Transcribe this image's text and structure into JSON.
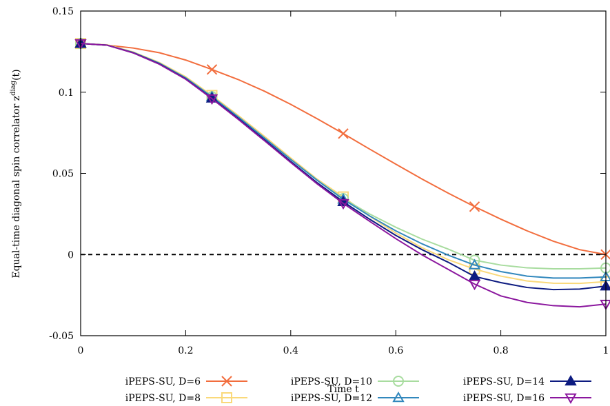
{
  "chart_data": {
    "type": "line",
    "xlabel": "Time t",
    "ylabel": "Equal-time diagonal spin correlator z",
    "ylabel_sup": "diag",
    "ylabel_suffix": "(t)",
    "xlim": [
      0,
      1
    ],
    "ylim": [
      -0.05,
      0.15
    ],
    "xticks": [
      0,
      0.2,
      0.4,
      0.6,
      0.8,
      1
    ],
    "xtick_labels": [
      "0",
      "0.2",
      "0.4",
      "0.6",
      "0.8",
      "1"
    ],
    "yticks": [
      -0.05,
      0,
      0.05,
      0.1,
      0.15
    ],
    "ytick_labels": [
      "-0.05",
      "0",
      "0.05",
      "0.1",
      "0.15"
    ],
    "reference_line": {
      "y": 0,
      "style": "dashed"
    },
    "legend_position": "bottom",
    "series": [
      {
        "name": "iPEPS-SU, D=6",
        "color": "#f26d3d",
        "marker": "x",
        "marker_filled": false,
        "x": [
          0,
          0.05,
          0.1,
          0.15,
          0.2,
          0.25,
          0.3,
          0.35,
          0.4,
          0.45,
          0.5,
          0.55,
          0.6,
          0.65,
          0.7,
          0.75,
          0.8,
          0.85,
          0.9,
          0.95,
          1.0
        ],
        "y": [
          0.13,
          0.129,
          0.1272,
          0.1243,
          0.1198,
          0.114,
          0.1078,
          0.1006,
          0.0925,
          0.0837,
          0.0745,
          0.065,
          0.0557,
          0.0465,
          0.0378,
          0.0295,
          0.0218,
          0.0146,
          0.0082,
          0.003,
          0.0
        ]
      },
      {
        "name": "iPEPS-SU, D=8",
        "color": "#fad97a",
        "marker": "square",
        "marker_filled": false,
        "x": [
          0,
          0.05,
          0.1,
          0.15,
          0.2,
          0.25,
          0.3,
          0.35,
          0.4,
          0.45,
          0.5,
          0.55,
          0.6,
          0.65,
          0.7,
          0.75,
          0.8,
          0.85,
          0.9,
          0.95,
          1.0
        ],
        "y": [
          0.13,
          0.1292,
          0.1248,
          0.1183,
          0.1095,
          0.098,
          0.0857,
          0.0728,
          0.0595,
          0.0465,
          0.0355,
          0.0237,
          0.0132,
          0.0042,
          -0.0032,
          -0.009,
          -0.0133,
          -0.0163,
          -0.0177,
          -0.0178,
          -0.0167
        ]
      },
      {
        "name": "iPEPS-SU, D=10",
        "color": "#a8dc9f",
        "marker": "circle",
        "marker_filled": false,
        "x": [
          0,
          0.05,
          0.1,
          0.15,
          0.2,
          0.25,
          0.3,
          0.35,
          0.4,
          0.45,
          0.5,
          0.55,
          0.6,
          0.65,
          0.7,
          0.75,
          0.8,
          0.85,
          0.9,
          0.95,
          1.0
        ],
        "y": [
          0.13,
          0.129,
          0.1245,
          0.1178,
          0.1088,
          0.0972,
          0.0848,
          0.0718,
          0.0586,
          0.046,
          0.0345,
          0.025,
          0.0168,
          0.0095,
          0.0033,
          -0.0035,
          -0.0065,
          -0.0082,
          -0.0088,
          -0.0088,
          -0.0083
        ]
      },
      {
        "name": "iPEPS-SU, D=12",
        "color": "#3288bd",
        "marker": "triangle",
        "marker_filled": false,
        "x": [
          0,
          0.05,
          0.1,
          0.15,
          0.2,
          0.25,
          0.3,
          0.35,
          0.4,
          0.45,
          0.5,
          0.55,
          0.6,
          0.65,
          0.7,
          0.75,
          0.8,
          0.85,
          0.9,
          0.95,
          1.0
        ],
        "y": [
          0.13,
          0.129,
          0.1245,
          0.1178,
          0.1088,
          0.0972,
          0.0848,
          0.0718,
          0.0586,
          0.0458,
          0.034,
          0.0238,
          0.0146,
          0.0066,
          -0.0004,
          -0.0065,
          -0.0105,
          -0.0133,
          -0.0145,
          -0.0145,
          -0.0138
        ]
      },
      {
        "name": "iPEPS-SU, D=14",
        "color": "#0d1b80",
        "marker": "triangle",
        "marker_filled": true,
        "x": [
          0,
          0.05,
          0.1,
          0.15,
          0.2,
          0.25,
          0.3,
          0.35,
          0.4,
          0.45,
          0.5,
          0.55,
          0.6,
          0.65,
          0.7,
          0.75,
          0.8,
          0.85,
          0.9,
          0.95,
          1.0
        ],
        "y": [
          0.13,
          0.129,
          0.1243,
          0.1174,
          0.1082,
          0.0963,
          0.0838,
          0.0707,
          0.0573,
          0.0443,
          0.0325,
          0.0218,
          0.0118,
          0.003,
          -0.0048,
          -0.0135,
          -0.0173,
          -0.0203,
          -0.0216,
          -0.0213,
          -0.0195
        ]
      },
      {
        "name": "iPEPS-SU, D=16",
        "color": "#8b179e",
        "marker": "triangle-down",
        "marker_filled": false,
        "x": [
          0,
          0.05,
          0.1,
          0.15,
          0.2,
          0.25,
          0.3,
          0.35,
          0.4,
          0.45,
          0.5,
          0.55,
          0.6,
          0.65,
          0.7,
          0.75,
          0.8,
          0.85,
          0.9,
          0.95,
          1.0
        ],
        "y": [
          0.13,
          0.129,
          0.1242,
          0.1172,
          0.108,
          0.096,
          0.0833,
          0.0701,
          0.0567,
          0.0436,
          0.0315,
          0.0205,
          0.0098,
          -0.0002,
          -0.0092,
          -0.0182,
          -0.0255,
          -0.0295,
          -0.0315,
          -0.0322,
          -0.0305
        ]
      }
    ]
  }
}
